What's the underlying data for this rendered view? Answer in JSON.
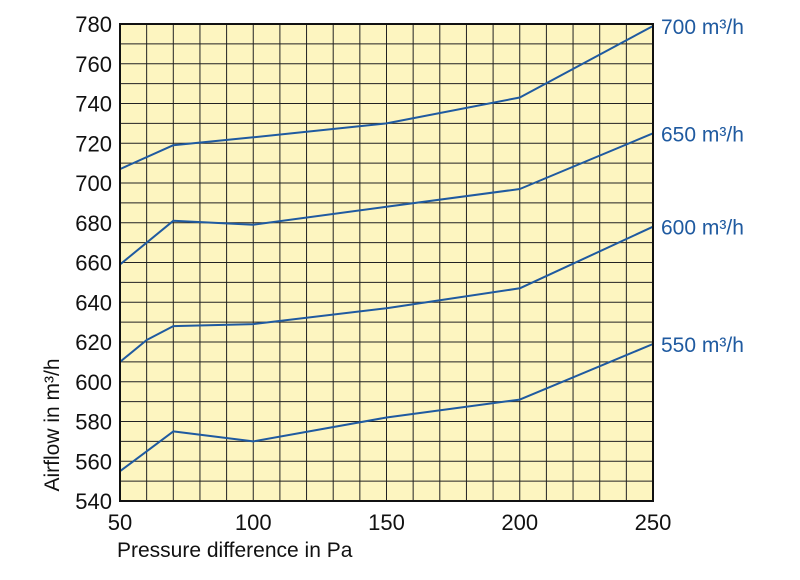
{
  "chart_data": {
    "type": "line",
    "xlabel": "Pressure difference in Pa",
    "ylabel": "Airflow in m³/h",
    "xlim": [
      50,
      250
    ],
    "ylim": [
      540,
      780
    ],
    "x_ticks": [
      "50",
      "100",
      "150",
      "200",
      "250"
    ],
    "y_ticks": [
      "540",
      "560",
      "580",
      "600",
      "620",
      "640",
      "660",
      "680",
      "700",
      "720",
      "740",
      "760",
      "780"
    ],
    "grid": true,
    "plot_background": "#fdf5c0",
    "line_color": "#1f5aa0",
    "series": [
      {
        "name": "550 m³/h",
        "x": [
          50,
          60,
          70,
          100,
          150,
          200,
          250
        ],
        "y": [
          555,
          565,
          575,
          570,
          582,
          591,
          619
        ]
      },
      {
        "name": "600 m³/h",
        "x": [
          50,
          60,
          70,
          100,
          150,
          200,
          250
        ],
        "y": [
          610,
          621,
          628,
          629,
          637,
          647,
          678
        ]
      },
      {
        "name": "650 m³/h",
        "x": [
          50,
          70,
          100,
          150,
          200,
          250
        ],
        "y": [
          659,
          681,
          679,
          688,
          697,
          725
        ]
      },
      {
        "name": "700 m³/h",
        "x": [
          50,
          70,
          100,
          150,
          200,
          250
        ],
        "y": [
          707,
          719,
          723,
          730,
          743,
          779
        ]
      }
    ]
  }
}
